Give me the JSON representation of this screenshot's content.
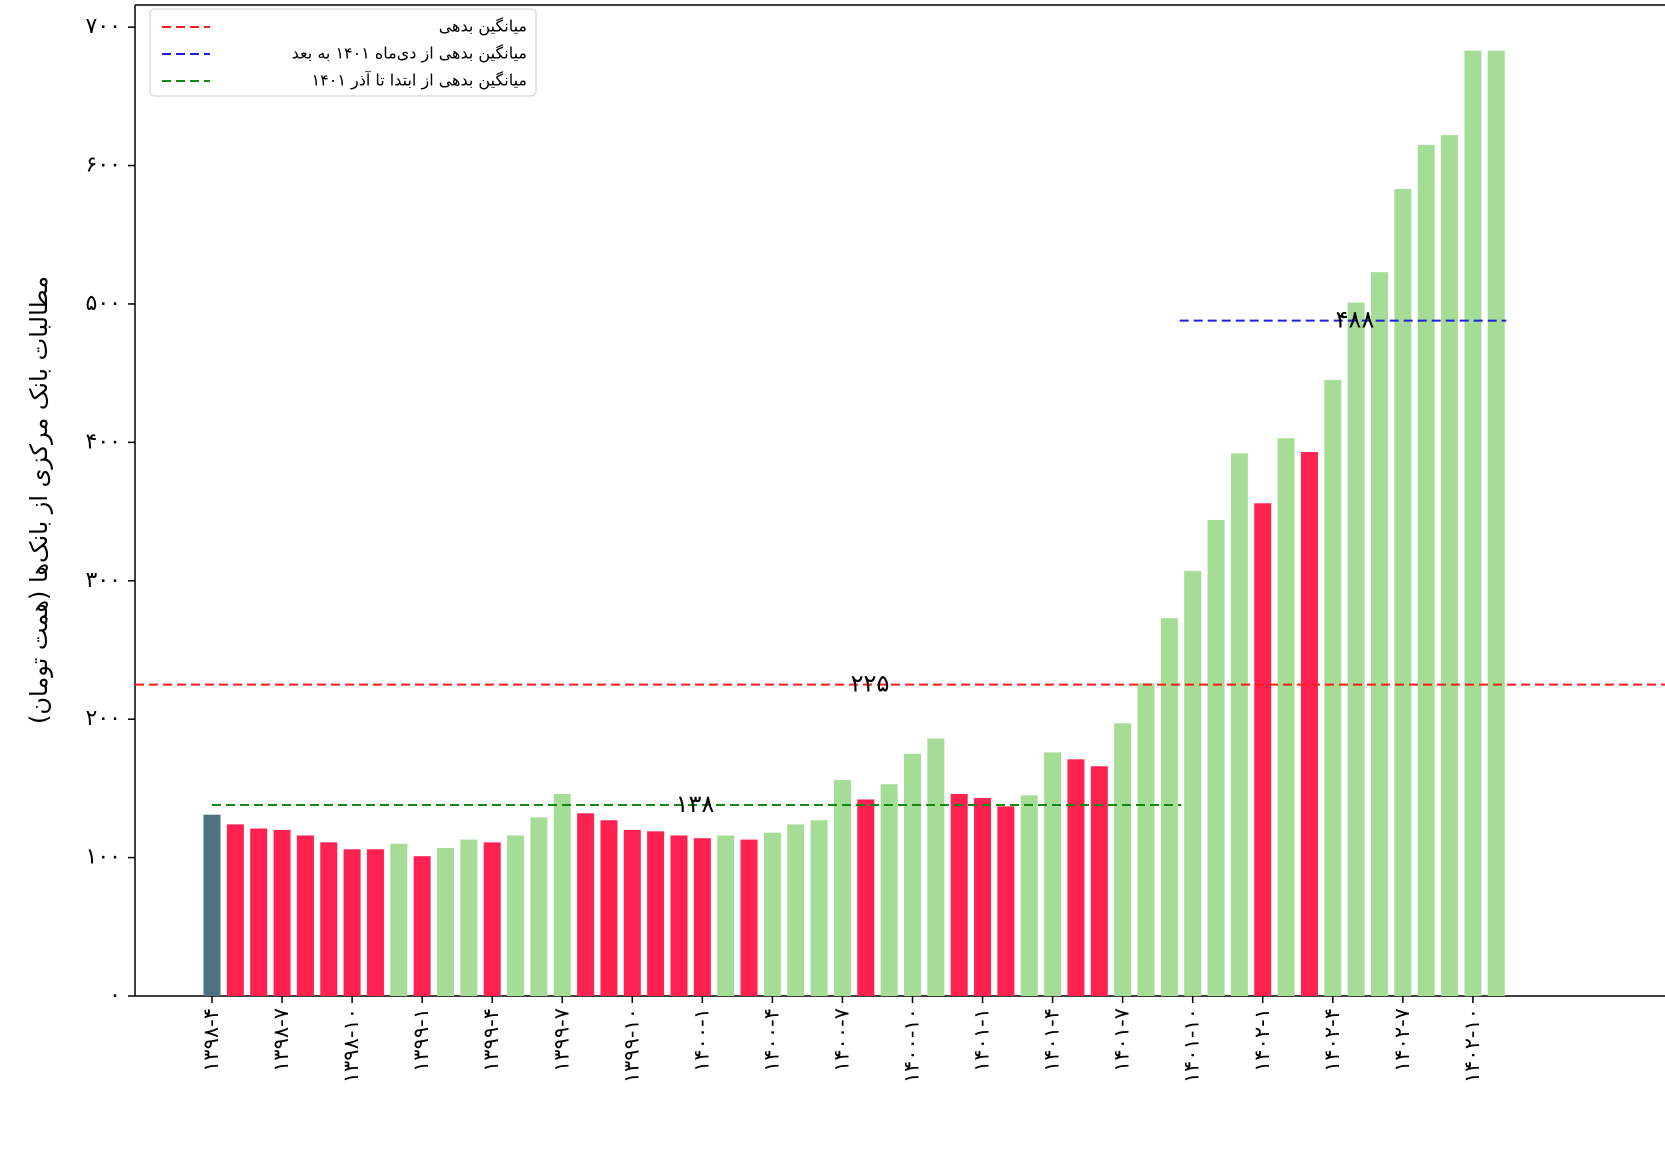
{
  "chart_data": {
    "type": "bar",
    "y_label": "مطالبات بانک مرکزی از بانک‌ها (همت تومان)",
    "categories": [
      "۱۳۹۸-۴",
      null,
      null,
      "۱۳۹۸-۷",
      null,
      null,
      "۱۳۹۸-۱۰",
      null,
      null,
      "۱۳۹۹-۱",
      null,
      null,
      "۱۳۹۹-۴",
      null,
      null,
      "۱۳۹۹-۷",
      null,
      null,
      "۱۳۹۹-۱۰",
      null,
      null,
      "۱۴۰۰-۱",
      null,
      null,
      "۱۴۰۰-۴",
      null,
      null,
      "۱۴۰۰-۷",
      null,
      null,
      "۱۴۰۰-۱۰",
      null,
      null,
      "۱۴۰۱-۱",
      null,
      null,
      "۱۴۰۱-۴",
      null,
      null,
      "۱۴۰۱-۷",
      null,
      null,
      "۱۴۰۱-۱۰",
      null,
      null,
      "۱۴۰۲-۱",
      null,
      null,
      "۱۴۰۲-۴",
      null,
      null,
      "۱۴۰۲-۷",
      null,
      null,
      "۱۴۰۲-۱۰",
      null
    ],
    "values": [
      131,
      124,
      121,
      120,
      116,
      111,
      106,
      106,
      110,
      101,
      107,
      113,
      111,
      116,
      129,
      146,
      132,
      127,
      120,
      119,
      116,
      114,
      116,
      113,
      118,
      124,
      127,
      156,
      142,
      153,
      175,
      186,
      146,
      143,
      137,
      145,
      176,
      171,
      166,
      197,
      226,
      273,
      307,
      344,
      392,
      356,
      403,
      393,
      445,
      501,
      523,
      583,
      615,
      622,
      683,
      683
    ],
    "colors": [
      "#4e7380",
      "#ff2250",
      "#ff2250",
      "#ff2250",
      "#ff2250",
      "#ff2250",
      "#ff2250",
      "#ff2250",
      "#a6dd96",
      "#ff2250",
      "#a6dd96",
      "#a6dd96",
      "#ff2250",
      "#a6dd96",
      "#a6dd96",
      "#a6dd96",
      "#ff2250",
      "#ff2250",
      "#ff2250",
      "#ff2250",
      "#ff2250",
      "#ff2250",
      "#a6dd96",
      "#ff2250",
      "#a6dd96",
      "#a6dd96",
      "#a6dd96",
      "#a6dd96",
      "#ff2250",
      "#a6dd96",
      "#a6dd96",
      "#a6dd96",
      "#ff2250",
      "#ff2250",
      "#ff2250",
      "#a6dd96",
      "#a6dd96",
      "#ff2250",
      "#ff2250",
      "#a6dd96",
      "#a6dd96",
      "#a6dd96",
      "#a6dd96",
      "#a6dd96",
      "#a6dd96",
      "#ff2250",
      "#a6dd96",
      "#ff2250",
      "#a6dd96",
      "#a6dd96",
      "#a6dd96",
      "#a6dd96",
      "#a6dd96",
      "#a6dd96",
      "#a6dd96",
      "#a6dd96"
    ],
    "reference_lines": [
      {
        "name": "میانگین بدهی",
        "value": 225,
        "value_label": "۲۲۵",
        "color": "#ff1a1a"
      },
      {
        "name": "میانگین بدهی از دی‌ماه ۱۴۰۱ به بعد",
        "value": 488,
        "value_label": "۴۸۸",
        "color": "#1f1fe0"
      },
      {
        "name": "میانگین بدهی از ابتدا تا آذر ۱۴۰۱",
        "value": 138,
        "value_label": "۱۳۸",
        "color": "#138a13"
      }
    ],
    "ylim": [
      0,
      716
    ],
    "yticks": [
      {
        "value": 0,
        "label": "۰"
      },
      {
        "value": 100,
        "label": "۱۰۰"
      },
      {
        "value": 200,
        "label": "۲۰۰"
      },
      {
        "value": 300,
        "label": "۳۰۰"
      },
      {
        "value": 400,
        "label": "۴۰۰"
      },
      {
        "value": 500,
        "label": "۵۰۰"
      },
      {
        "value": 600,
        "label": "۶۰۰"
      },
      {
        "value": 700,
        "label": "۷۰۰"
      }
    ],
    "legend": "upper left"
  }
}
